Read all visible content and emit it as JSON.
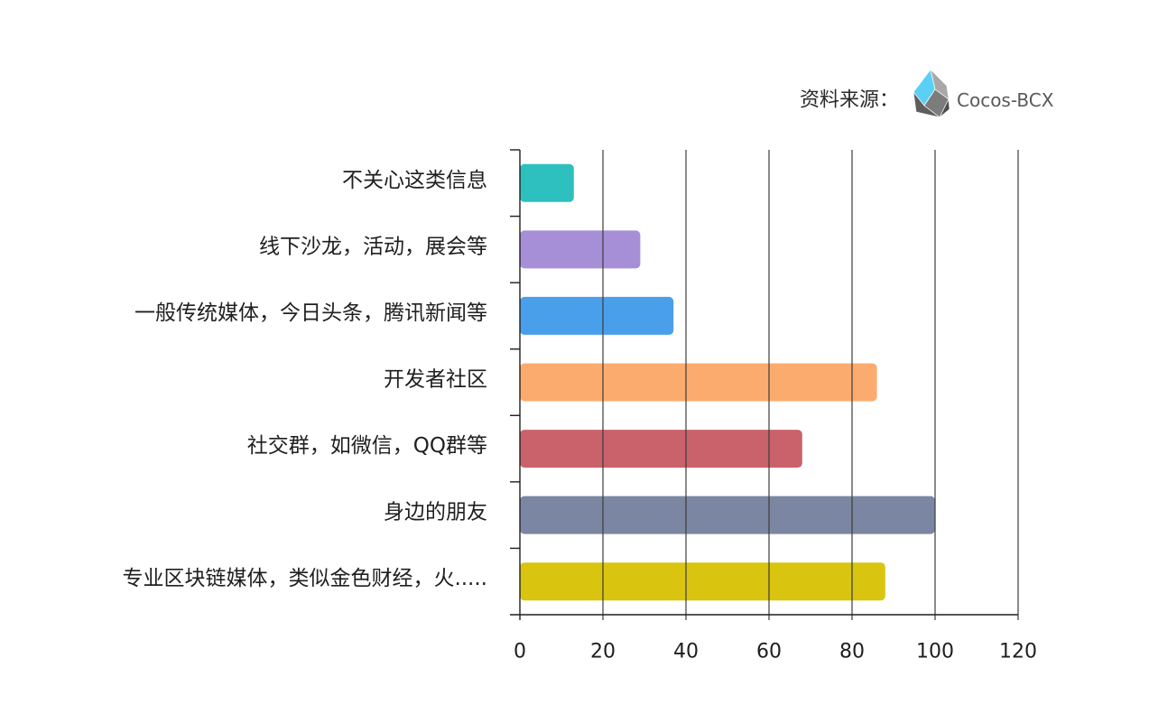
{
  "source": {
    "label": "资料来源：",
    "brand": "Cocos-BCX",
    "logo_icon": "cocos-bcx-logo-icon"
  },
  "chart_data": {
    "type": "bar",
    "orientation": "horizontal",
    "categories": [
      "不关心这类信息",
      "线下沙龙，活动，展会等",
      "一般传统媒体，今日头条，腾讯新闻等",
      "开发者社区",
      "社交群，如微信，QQ群等",
      "身边的朋友",
      "专业区块链媒体，类似金色财经，火....."
    ],
    "values": [
      13,
      29,
      37,
      86,
      68,
      100,
      88
    ],
    "colors": [
      "#2ebfbf",
      "#a68fd7",
      "#4a9fea",
      "#fcab6e",
      "#c9626b",
      "#7b86a2",
      "#d9c410"
    ],
    "xlim": [
      0,
      120
    ],
    "xticks": [
      0,
      20,
      40,
      60,
      80,
      100,
      120
    ],
    "grid": true
  }
}
